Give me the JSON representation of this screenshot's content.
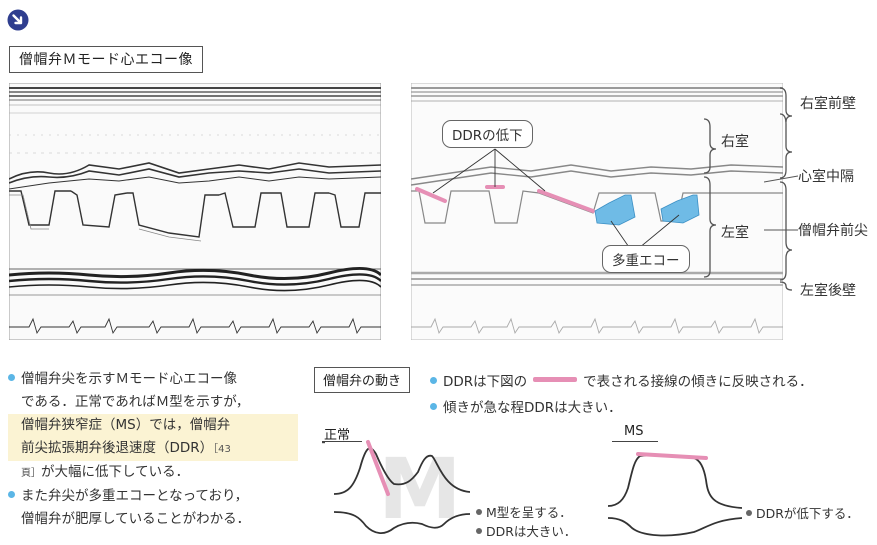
{
  "header": {
    "title": "僧帽弁Ｍモード心エコー像"
  },
  "figure": {
    "annotations": {
      "ddr_drop": "DDRの低下",
      "multi_echo": "多重エコー"
    },
    "labels": {
      "rv_anterior_wall": "右室前壁",
      "right_ventricle": "右室",
      "septum": "心室中隔",
      "left_ventricle": "左室",
      "mitral_tip": "僧帽弁前尖",
      "lv_posterior_wall": "左室後壁"
    }
  },
  "description": {
    "line1": "僧帽弁尖を示すＭモード心エコー像",
    "line2": "である．正常であればＭ型を示すが，",
    "line3": "僧帽弁狭窄症（MS）では，僧帽弁",
    "line4": "前尖拡張期弁後退速度（DDR）",
    "line4_ref": "［43",
    "line5_ref": "頁］",
    "line5": "が大幅に低下している．",
    "line6": "また弁尖が多重エコーとなっており，",
    "line7": "僧帽弁が肥厚していることがわかる．"
  },
  "motion": {
    "title": "僧帽弁の動き",
    "bullet1_pre": "DDRは下図の",
    "bullet1_post": "で表される接線の傾きに反映される．",
    "bullet2": "傾きが急な程DDRは大きい．",
    "normal": {
      "label": "正常",
      "watermark": "M",
      "note1": "M型を呈する．",
      "note2": "DDRは大きい．"
    },
    "ms": {
      "label": "MS",
      "note1": "DDRが低下する．"
    }
  },
  "colors": {
    "accent": "#5bb6e6",
    "pink": "#e68fb5",
    "blue_echo": "#6fbbe6"
  }
}
